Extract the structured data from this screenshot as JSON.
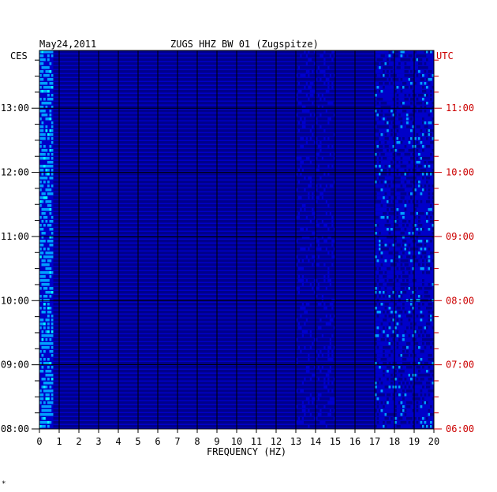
{
  "header": {
    "date": "May24,2011",
    "station": "ZUGS HHZ BW 01 (Zugspitze)",
    "left_zone": "CES",
    "right_zone": "UTC"
  },
  "footnote_mark": "*",
  "chart_data": {
    "type": "heatmap",
    "title": "ZUGS HHZ BW 01 (Zugspitze)",
    "date": "May24,2011",
    "xlabel": "FREQUENCY (HZ)",
    "xlim": [
      0,
      20
    ],
    "x_ticks": [
      "0",
      "1",
      "2",
      "3",
      "4",
      "5",
      "6",
      "7",
      "8",
      "9",
      "10",
      "11",
      "12",
      "13",
      "14",
      "15",
      "16",
      "17",
      "18",
      "19",
      "20"
    ],
    "y_left_label": "CES",
    "y_right_label": "UTC",
    "y_left_ticks": [
      "08:00",
      "09:00",
      "10:00",
      "11:00",
      "12:00",
      "13:00"
    ],
    "y_right_ticks": [
      "06:00",
      "07:00",
      "08:00",
      "09:00",
      "10:00",
      "11:00"
    ],
    "y_time_range_hours": [
      8.0,
      13.9
    ],
    "grid": true,
    "colorscale": [
      "#00008b",
      "#0000ff",
      "#00a0ff",
      "#00ffff",
      "#ffff00",
      "#ff0000"
    ],
    "background_color": "#0000c8",
    "gridline_color": "#000000",
    "utc_color": "#cc0000"
  }
}
